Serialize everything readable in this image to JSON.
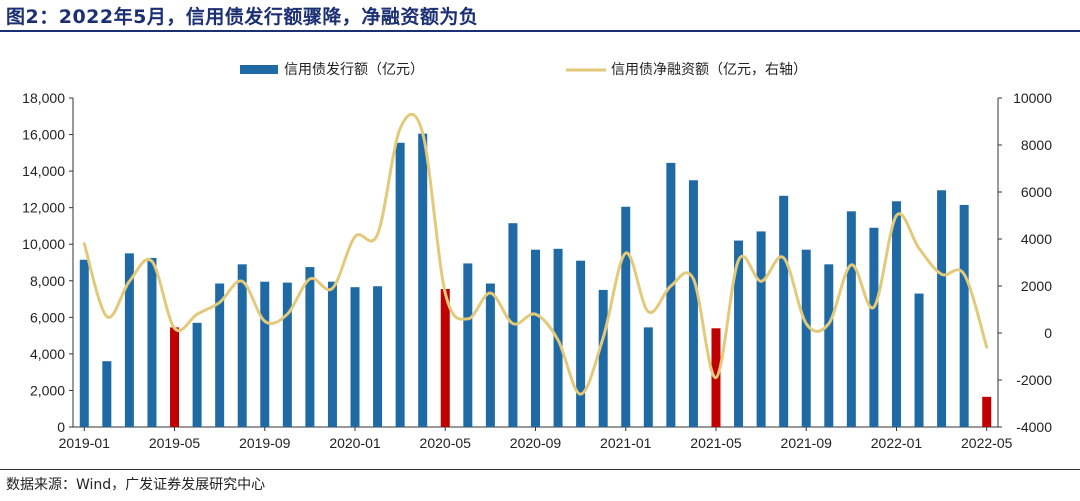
{
  "title": "图2：2022年5月，信用债发行额骤降，净融资额为负",
  "source": "数据来源：Wind，广发证券发展研究中心",
  "colors": {
    "bar": "#1f6aa5",
    "bar_highlight": "#c00000",
    "line": "#e3c97a"
  },
  "chart_data": {
    "type": "bar+line",
    "legend": [
      "信用债发行额（亿元）",
      "信用债净融资额（亿元，右轴）"
    ],
    "legend_position": "top-center",
    "categories": [
      "2019-01",
      "2019-02",
      "2019-03",
      "2019-04",
      "2019-05",
      "2019-06",
      "2019-07",
      "2019-08",
      "2019-09",
      "2019-10",
      "2019-11",
      "2019-12",
      "2020-01",
      "2020-02",
      "2020-03",
      "2020-04",
      "2020-05",
      "2020-06",
      "2020-07",
      "2020-08",
      "2020-09",
      "2020-10",
      "2020-11",
      "2020-12",
      "2021-01",
      "2021-02",
      "2021-03",
      "2021-04",
      "2021-05",
      "2021-06",
      "2021-07",
      "2021-08",
      "2021-09",
      "2021-10",
      "2021-11",
      "2021-12",
      "2022-01",
      "2022-02",
      "2022-03",
      "2022-04",
      "2022-05"
    ],
    "x_tick_labels": [
      "2019-01",
      "2019-05",
      "2019-09",
      "2020-01",
      "2020-05",
      "2020-09",
      "2021-01",
      "2021-05",
      "2021-09",
      "2022-01",
      "2022-05"
    ],
    "y_left": {
      "min": 0,
      "max": 18000,
      "ticks": [
        "0",
        "2,000",
        "4,000",
        "6,000",
        "8,000",
        "10,000",
        "12,000",
        "14,000",
        "16,000",
        "18,000"
      ]
    },
    "y_right": {
      "min": -4000,
      "max": 10000,
      "ticks": [
        "-4000",
        "-2000",
        "0",
        "2000",
        "4000",
        "6000",
        "8000",
        "10000"
      ]
    },
    "highlight_months": [
      "2019-05",
      "2020-05",
      "2021-05",
      "2022-05"
    ],
    "series": [
      {
        "name": "信用债发行额（亿元）",
        "type": "bar",
        "axis": "left",
        "values": [
          9150,
          3600,
          9500,
          9250,
          5450,
          5700,
          7850,
          8900,
          7950,
          7900,
          8750,
          7950,
          7650,
          7700,
          15550,
          16050,
          7550,
          8950,
          7850,
          11150,
          9700,
          9750,
          9100,
          7500,
          12050,
          5450,
          14450,
          13500,
          5400,
          10200,
          10700,
          12650,
          9700,
          8900,
          11800,
          10900,
          12350,
          7300,
          12950,
          12150,
          1650
        ]
      },
      {
        "name": "信用债净融资额（亿元，右轴）",
        "type": "line",
        "axis": "right",
        "values": [
          3800,
          700,
          2200,
          3050,
          200,
          800,
          1300,
          2200,
          500,
          800,
          2300,
          1900,
          4100,
          4200,
          8700,
          8500,
          1700,
          600,
          1700,
          400,
          800,
          -300,
          -2600,
          -200,
          3400,
          900,
          2000,
          2300,
          -1900,
          3100,
          2200,
          3200,
          400,
          400,
          2900,
          1100,
          5000,
          3600,
          2500,
          2500,
          -600
        ]
      }
    ]
  }
}
